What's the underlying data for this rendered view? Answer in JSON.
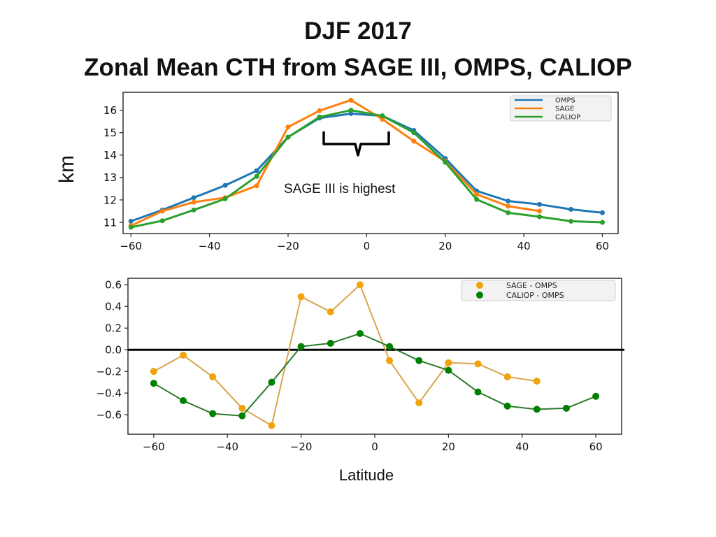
{
  "slide": {
    "title_line1": "DJF 2017",
    "title_line2": "Zonal Mean CTH from SAGE III, OMPS, CALIOP",
    "ylabel": "km",
    "xlabel": "Latitude",
    "annotation": "SAGE III is highest"
  },
  "chart_data": [
    {
      "type": "line",
      "title": "",
      "xlabel": "",
      "ylabel": "km",
      "xlim": [
        -62,
        64
      ],
      "ylim": [
        10.5,
        16.8
      ],
      "xticks": [
        -60,
        -40,
        -20,
        0,
        20,
        40,
        60
      ],
      "xtick_labels": [
        "−60",
        "−40",
        "−20",
        "0",
        "20",
        "40",
        "60"
      ],
      "yticks": [
        11,
        12,
        13,
        14,
        15,
        16
      ],
      "ytick_labels": [
        "11",
        "12",
        "13",
        "14",
        "15",
        "16"
      ],
      "grid": false,
      "legend_position": "top-right",
      "series": [
        {
          "name": "OMPS",
          "color": "#1f77b4",
          "x": [
            -60,
            -52,
            -44,
            -36,
            -28,
            -20,
            -12,
            -4,
            4,
            12,
            20,
            28,
            36,
            44,
            52,
            60
          ],
          "y": [
            11.05,
            11.55,
            12.1,
            12.65,
            13.3,
            14.8,
            15.65,
            15.85,
            15.75,
            15.1,
            13.85,
            12.4,
            11.95,
            11.8,
            11.58,
            11.43
          ]
        },
        {
          "name": "SAGE",
          "color": "#ff7f0e",
          "x": [
            -60,
            -52,
            -44,
            -36,
            -28,
            -20,
            -12,
            -4,
            4,
            12,
            20,
            28,
            36,
            44
          ],
          "y": [
            10.85,
            11.5,
            11.9,
            12.1,
            12.63,
            15.25,
            15.98,
            16.45,
            15.6,
            14.62,
            13.72,
            12.25,
            11.72,
            11.5
          ]
        },
        {
          "name": "CALIOP",
          "color": "#2ca02c",
          "x": [
            -60,
            -52,
            -44,
            -36,
            -28,
            -20,
            -12,
            -4,
            4,
            12,
            20,
            28,
            36,
            44,
            52,
            60
          ],
          "y": [
            10.78,
            11.07,
            11.55,
            12.05,
            13.05,
            14.8,
            15.7,
            16.0,
            15.75,
            15.0,
            13.68,
            12.02,
            11.43,
            11.25,
            11.05,
            11.0
          ]
        }
      ]
    },
    {
      "type": "line",
      "title": "",
      "xlabel": "Latitude",
      "ylabel": "",
      "xlim": [
        -67,
        67
      ],
      "ylim": [
        -0.78,
        0.66
      ],
      "xticks": [
        -60,
        -40,
        -20,
        0,
        20,
        40,
        60
      ],
      "xtick_labels": [
        "−60",
        "−40",
        "−20",
        "0",
        "20",
        "40",
        "60"
      ],
      "yticks": [
        -0.6,
        -0.4,
        -0.2,
        0.0,
        0.2,
        0.4,
        0.6
      ],
      "ytick_labels": [
        "−0.6",
        "−0.4",
        "−0.2",
        "0.0",
        "0.2",
        "0.4",
        "0.6"
      ],
      "grid": false,
      "zero_line": true,
      "legend_position": "top-right",
      "series": [
        {
          "name": "SAGE - OMPS",
          "color": "#f0a30a",
          "line_color": "#daa54a",
          "x": [
            -60,
            -52,
            -44,
            -36,
            -28,
            -20,
            -12,
            -4,
            4,
            12,
            20,
            28,
            36,
            44
          ],
          "y": [
            -0.2,
            -0.05,
            -0.25,
            -0.54,
            -0.7,
            0.49,
            0.35,
            0.6,
            -0.1,
            -0.49,
            -0.12,
            -0.13,
            -0.25,
            -0.29
          ]
        },
        {
          "name": "CALIOP - OMPS",
          "color": "#008000",
          "line_color": "#2a7a2a",
          "x": [
            -60,
            -52,
            -44,
            -36,
            -28,
            -20,
            -12,
            -4,
            4,
            12,
            20,
            28,
            36,
            44,
            52,
            60
          ],
          "y": [
            -0.31,
            -0.47,
            -0.59,
            -0.61,
            -0.3,
            0.03,
            0.06,
            0.15,
            0.03,
            -0.1,
            -0.19,
            -0.39,
            -0.52,
            -0.55,
            -0.54,
            -0.43
          ]
        }
      ]
    }
  ]
}
